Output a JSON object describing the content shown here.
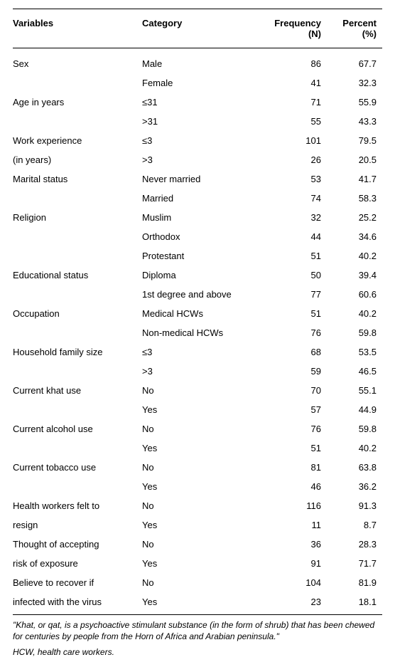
{
  "table": {
    "headers": [
      "Variables",
      "Category",
      "Frequency (N)",
      "Percent (%)"
    ],
    "groups": [
      {
        "variable": [
          "Sex"
        ],
        "rows": [
          {
            "category": "Male",
            "freq": "86",
            "pct": "67.7"
          },
          {
            "category": "Female",
            "freq": "41",
            "pct": "32.3"
          }
        ]
      },
      {
        "variable": [
          "Age in years"
        ],
        "rows": [
          {
            "category": "≤31",
            "freq": "71",
            "pct": "55.9"
          },
          {
            "category": ">31",
            "freq": "55",
            "pct": "43.3"
          }
        ]
      },
      {
        "variable": [
          "Work experience",
          "(in years)"
        ],
        "rows": [
          {
            "category": "≤3",
            "freq": "101",
            "pct": "79.5"
          },
          {
            "category": ">3",
            "freq": "26",
            "pct": "20.5"
          }
        ]
      },
      {
        "variable": [
          "Marital status"
        ],
        "rows": [
          {
            "category": "Never married",
            "freq": "53",
            "pct": "41.7"
          },
          {
            "category": "Married",
            "freq": "74",
            "pct": "58.3"
          }
        ]
      },
      {
        "variable": [
          "Religion"
        ],
        "rows": [
          {
            "category": "Muslim",
            "freq": "32",
            "pct": "25.2"
          },
          {
            "category": "Orthodox",
            "freq": "44",
            "pct": "34.6"
          },
          {
            "category": "Protestant",
            "freq": "51",
            "pct": "40.2"
          }
        ]
      },
      {
        "variable": [
          "Educational status"
        ],
        "rows": [
          {
            "category": "Diploma",
            "freq": "50",
            "pct": "39.4"
          },
          {
            "category": "1st degree and above",
            "freq": "77",
            "pct": "60.6"
          }
        ]
      },
      {
        "variable": [
          "Occupation"
        ],
        "rows": [
          {
            "category": "Medical HCWs",
            "freq": "51",
            "pct": "40.2"
          },
          {
            "category": "Non-medical HCWs",
            "freq": "76",
            "pct": "59.8"
          }
        ]
      },
      {
        "variable": [
          "Household family size"
        ],
        "rows": [
          {
            "category": "≤3",
            "freq": "68",
            "pct": "53.5"
          },
          {
            "category": ">3",
            "freq": "59",
            "pct": "46.5"
          }
        ]
      },
      {
        "variable": [
          "Current khat use"
        ],
        "rows": [
          {
            "category": "No",
            "freq": "70",
            "pct": "55.1"
          },
          {
            "category": "Yes",
            "freq": "57",
            "pct": "44.9"
          }
        ]
      },
      {
        "variable": [
          "Current alcohol use"
        ],
        "rows": [
          {
            "category": "No",
            "freq": "76",
            "pct": "59.8"
          },
          {
            "category": "Yes",
            "freq": "51",
            "pct": "40.2"
          }
        ]
      },
      {
        "variable": [
          "Current tobacco use"
        ],
        "rows": [
          {
            "category": "No",
            "freq": "81",
            "pct": "63.8"
          },
          {
            "category": "Yes",
            "freq": "46",
            "pct": "36.2"
          }
        ]
      },
      {
        "variable": [
          "Health workers felt to",
          "resign"
        ],
        "rows": [
          {
            "category": "No",
            "freq": "116",
            "pct": "91.3"
          },
          {
            "category": "Yes",
            "freq": "11",
            "pct": "8.7"
          }
        ]
      },
      {
        "variable": [
          "Thought of accepting",
          "risk of exposure"
        ],
        "rows": [
          {
            "category": "No",
            "freq": "36",
            "pct": "28.3"
          },
          {
            "category": "Yes",
            "freq": "91",
            "pct": "71.7"
          }
        ]
      },
      {
        "variable": [
          "Believe to recover if",
          "infected with the virus"
        ],
        "rows": [
          {
            "category": "No",
            "freq": "104",
            "pct": "81.9"
          },
          {
            "category": "Yes",
            "freq": "23",
            "pct": "18.1"
          }
        ]
      }
    ]
  },
  "footnotes": [
    "\"Khat, or qat, is a psychoactive stimulant substance (in the form of shrub) that has been chewed for centuries by people from the Horn of Africa and Arabian peninsula.\"",
    "HCW, health care workers."
  ]
}
